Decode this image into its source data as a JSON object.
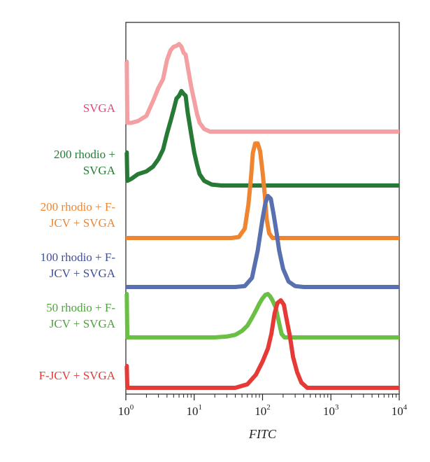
{
  "chart_data": {
    "type": "area",
    "title": "",
    "xlabel": "FITC",
    "ylabel": "",
    "x_scale": "log",
    "xlim": [
      1,
      10000
    ],
    "x_ticks": [
      {
        "value": 1,
        "base": "10",
        "exp": "0"
      },
      {
        "value": 10,
        "base": "10",
        "exp": "1"
      },
      {
        "value": 100,
        "base": "10",
        "exp": "2"
      },
      {
        "value": 1000,
        "base": "10",
        "exp": "3"
      },
      {
        "value": 10000,
        "base": "10",
        "exp": "4"
      }
    ],
    "grid": false,
    "legend": "none",
    "series": [
      {
        "name": "SVGA",
        "label_lines": [
          "SVGA"
        ],
        "color": "#f4a0a3",
        "label_color": "#e8457e",
        "points": [
          [
            1,
            0.8
          ],
          [
            1.03,
            0.8
          ],
          [
            1.05,
            0.1
          ],
          [
            1.2,
            0.1
          ],
          [
            1.5,
            0.12
          ],
          [
            2,
            0.18
          ],
          [
            2.5,
            0.35
          ],
          [
            3,
            0.5
          ],
          [
            3.5,
            0.6
          ],
          [
            4,
            0.82
          ],
          [
            4.5,
            0.93
          ],
          [
            5,
            0.97
          ],
          [
            5.5,
            0.98
          ],
          [
            6,
            1.0
          ],
          [
            6.5,
            0.97
          ],
          [
            7,
            0.9
          ],
          [
            7.5,
            0.88
          ],
          [
            8,
            0.75
          ],
          [
            9,
            0.52
          ],
          [
            10,
            0.35
          ],
          [
            11,
            0.2
          ],
          [
            12,
            0.1
          ],
          [
            14,
            0.03
          ],
          [
            17,
            0.0
          ],
          [
            10000,
            0.0
          ]
        ]
      },
      {
        "name": "200 rhodio + SVGA",
        "label_lines": [
          "200 rhodio +",
          "SVGA"
        ],
        "color": "#267a36",
        "label_color": "#267a36",
        "points": [
          [
            1,
            0.35
          ],
          [
            1.03,
            0.35
          ],
          [
            1.05,
            0.05
          ],
          [
            1.2,
            0.07
          ],
          [
            1.5,
            0.12
          ],
          [
            2,
            0.15
          ],
          [
            2.5,
            0.2
          ],
          [
            3,
            0.28
          ],
          [
            3.5,
            0.38
          ],
          [
            4,
            0.55
          ],
          [
            4.5,
            0.68
          ],
          [
            5,
            0.8
          ],
          [
            5.5,
            0.92
          ],
          [
            6,
            0.95
          ],
          [
            6.5,
            1.0
          ],
          [
            7,
            0.97
          ],
          [
            7.5,
            0.95
          ],
          [
            8,
            0.78
          ],
          [
            9,
            0.55
          ],
          [
            10,
            0.35
          ],
          [
            11,
            0.22
          ],
          [
            12,
            0.12
          ],
          [
            14,
            0.05
          ],
          [
            18,
            0.01
          ],
          [
            25,
            0.0
          ],
          [
            10000,
            0.0
          ]
        ]
      },
      {
        "name": "200 rhodio + F-JCV + SVGA",
        "label_lines": [
          "200 rhodio + F-",
          "JCV + SVGA"
        ],
        "color": "#ef8530",
        "label_color": "#ef8530",
        "points": [
          [
            1,
            0.0
          ],
          [
            35,
            0.0
          ],
          [
            45,
            0.01
          ],
          [
            55,
            0.1
          ],
          [
            62,
            0.35
          ],
          [
            68,
            0.65
          ],
          [
            72,
            0.9
          ],
          [
            78,
            1.0
          ],
          [
            85,
            1.0
          ],
          [
            92,
            0.92
          ],
          [
            100,
            0.7
          ],
          [
            108,
            0.45
          ],
          [
            115,
            0.2
          ],
          [
            125,
            0.05
          ],
          [
            140,
            0.0
          ],
          [
            10000,
            0.0
          ]
        ]
      },
      {
        "name": "100 rhodio + F-JCV + SVGA",
        "label_lines": [
          "100 rhodio + F-",
          "JCV + SVGA"
        ],
        "color": "#5870b0",
        "label_color": "#3f4f9a",
        "points": [
          [
            1,
            0.0
          ],
          [
            40,
            0.0
          ],
          [
            55,
            0.01
          ],
          [
            70,
            0.1
          ],
          [
            85,
            0.4
          ],
          [
            100,
            0.75
          ],
          [
            110,
            0.92
          ],
          [
            120,
            1.0
          ],
          [
            132,
            0.97
          ],
          [
            145,
            0.8
          ],
          [
            160,
            0.6
          ],
          [
            175,
            0.4
          ],
          [
            200,
            0.2
          ],
          [
            240,
            0.06
          ],
          [
            300,
            0.01
          ],
          [
            400,
            0.0
          ],
          [
            10000,
            0.0
          ]
        ]
      },
      {
        "name": "50 rhodio + F-JCV + SVGA",
        "label_lines": [
          "50 rhodio + F-",
          "JCV + SVGA"
        ],
        "color": "#6abf45",
        "label_color": "#4ca33a",
        "points": [
          [
            1,
            1.0
          ],
          [
            1.03,
            1.0
          ],
          [
            1.05,
            0.0
          ],
          [
            20,
            0.0
          ],
          [
            30,
            0.02
          ],
          [
            40,
            0.06
          ],
          [
            50,
            0.15
          ],
          [
            60,
            0.27
          ],
          [
            70,
            0.45
          ],
          [
            80,
            0.62
          ],
          [
            90,
            0.78
          ],
          [
            100,
            0.9
          ],
          [
            110,
            0.98
          ],
          [
            120,
            1.0
          ],
          [
            130,
            0.94
          ],
          [
            140,
            0.85
          ],
          [
            155,
            0.7
          ],
          [
            170,
            0.42
          ],
          [
            190,
            0.08
          ],
          [
            210,
            0.0
          ],
          [
            10000,
            0.0
          ]
        ]
      },
      {
        "name": "F-JCV + SVGA",
        "label_lines": [
          "F-JCV + SVGA"
        ],
        "color": "#e53a35",
        "label_color": "#e53a35",
        "points": [
          [
            1,
            0.25
          ],
          [
            1.03,
            0.25
          ],
          [
            1.05,
            0.0
          ],
          [
            40,
            0.0
          ],
          [
            60,
            0.04
          ],
          [
            80,
            0.15
          ],
          [
            100,
            0.3
          ],
          [
            120,
            0.45
          ],
          [
            135,
            0.62
          ],
          [
            150,
            0.85
          ],
          [
            165,
            0.97
          ],
          [
            185,
            1.0
          ],
          [
            205,
            0.95
          ],
          [
            220,
            0.82
          ],
          [
            250,
            0.6
          ],
          [
            280,
            0.35
          ],
          [
            320,
            0.18
          ],
          [
            370,
            0.06
          ],
          [
            450,
            0.0
          ],
          [
            10000,
            0.0
          ]
        ]
      }
    ]
  }
}
